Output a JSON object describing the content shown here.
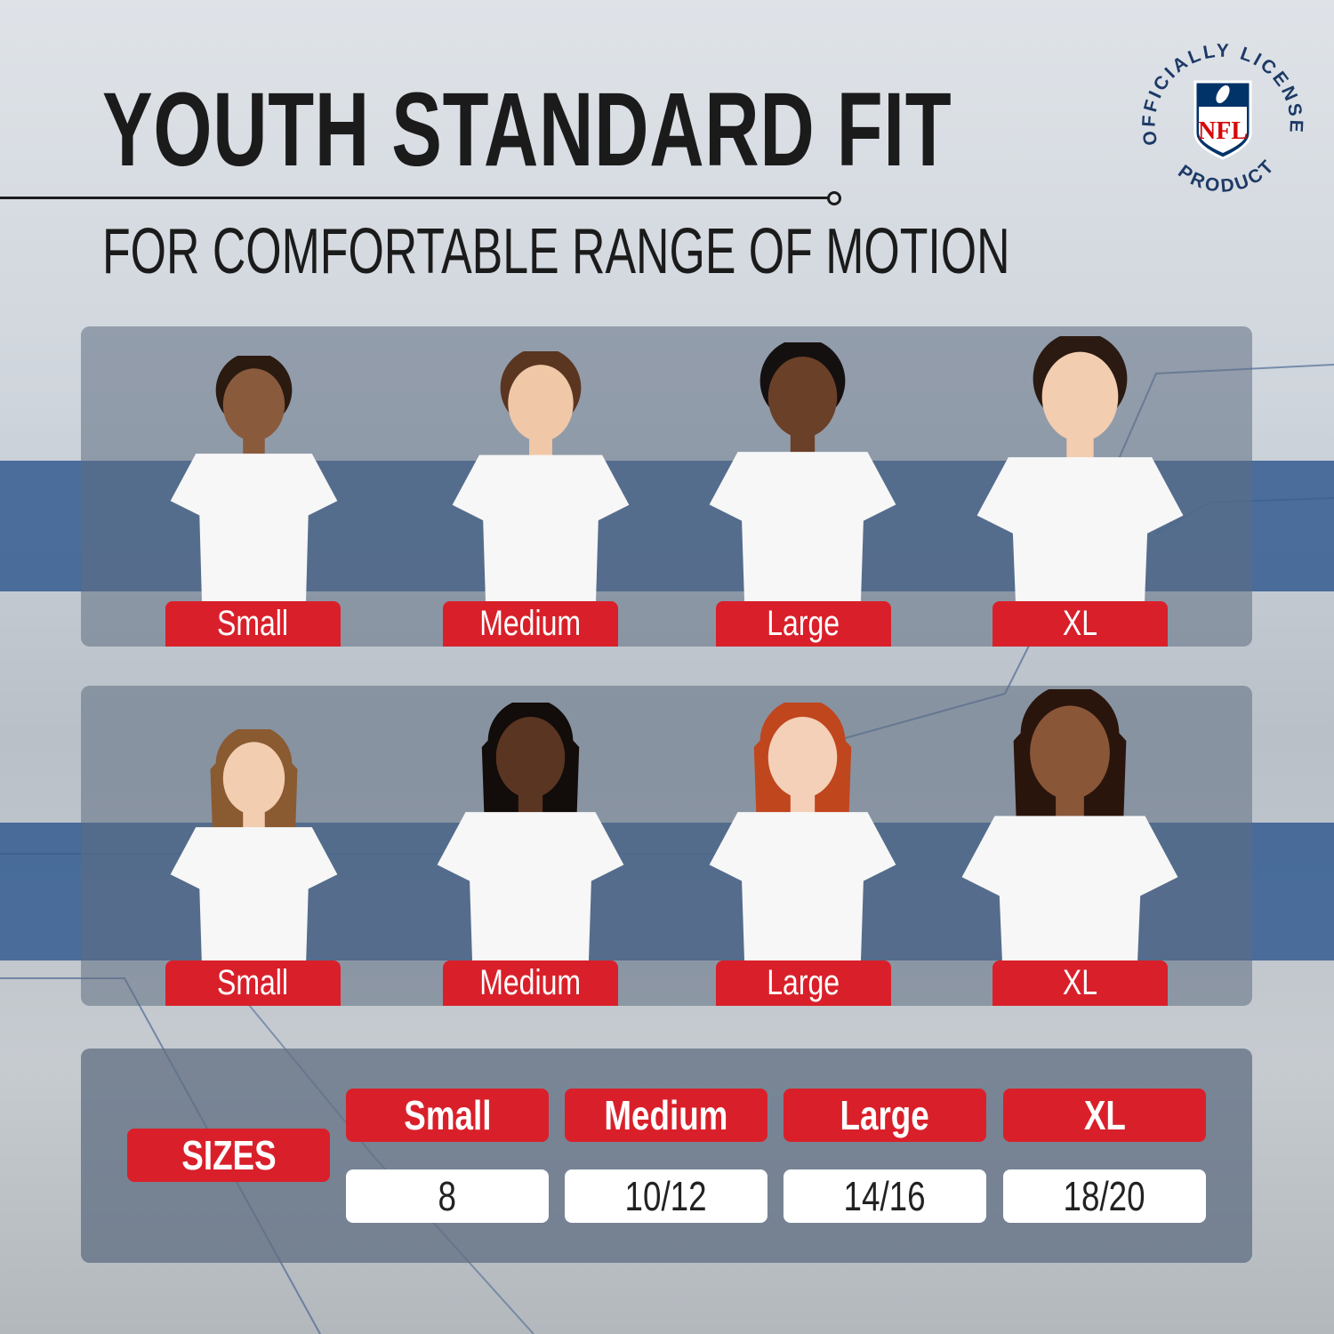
{
  "header": {
    "title": "YOUTH STANDARD FIT",
    "subtitle": "FOR COMFORTABLE RANGE OF MOTION"
  },
  "badge": {
    "text_top": "OFFICIALLY LICENSED",
    "text_bottom": "PRODUCT",
    "logo_text": "NFL",
    "colors": {
      "navy": "#013369",
      "red": "#d50a0a"
    }
  },
  "rows": [
    {
      "labels": [
        "Small",
        "Medium",
        "Large",
        "XL"
      ]
    },
    {
      "labels": [
        "Small",
        "Medium",
        "Large",
        "XL"
      ]
    }
  ],
  "size_table": {
    "row_label": "SIZES",
    "headers": [
      "Small",
      "Medium",
      "Large",
      "XL"
    ],
    "values": [
      "8",
      "10/12",
      "14/16",
      "18/20"
    ]
  },
  "colors": {
    "accent_red": "#d9202a",
    "band_blue": "#345c91"
  }
}
